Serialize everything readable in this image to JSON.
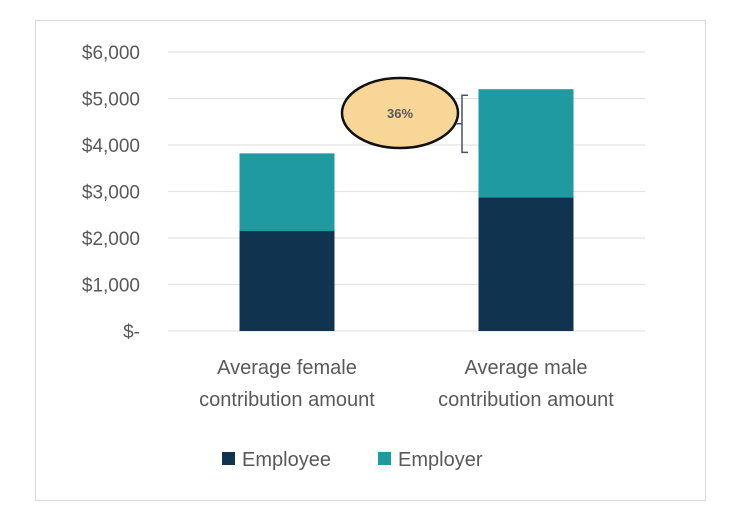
{
  "chart_data": {
    "type": "bar",
    "stacked": true,
    "categories": [
      "Average female contribution amount",
      "Average male contribution amount"
    ],
    "category_lines": [
      [
        "Average female",
        "contribution amount"
      ],
      [
        "Average male",
        "contribution amount"
      ]
    ],
    "series": [
      {
        "name": "Employee",
        "values": [
          2150,
          2870
        ],
        "color": "#10344f"
      },
      {
        "name": "Employer",
        "values": [
          1670,
          2330
        ],
        "color": "#1f9aa0"
      }
    ],
    "ylim": [
      0,
      6000
    ],
    "yticks": [
      0,
      1000,
      2000,
      3000,
      4000,
      5000,
      6000
    ],
    "ytick_labels": [
      "$-",
      "$1,000",
      "$2,000",
      "$3,000",
      "$4,000",
      "$5,000",
      "$6,000"
    ],
    "grid": true,
    "legend_position": "bottom",
    "annotation": {
      "text": "36%",
      "fill": "#f8d697",
      "bracket_from": 3820,
      "bracket_to": 5200
    }
  }
}
